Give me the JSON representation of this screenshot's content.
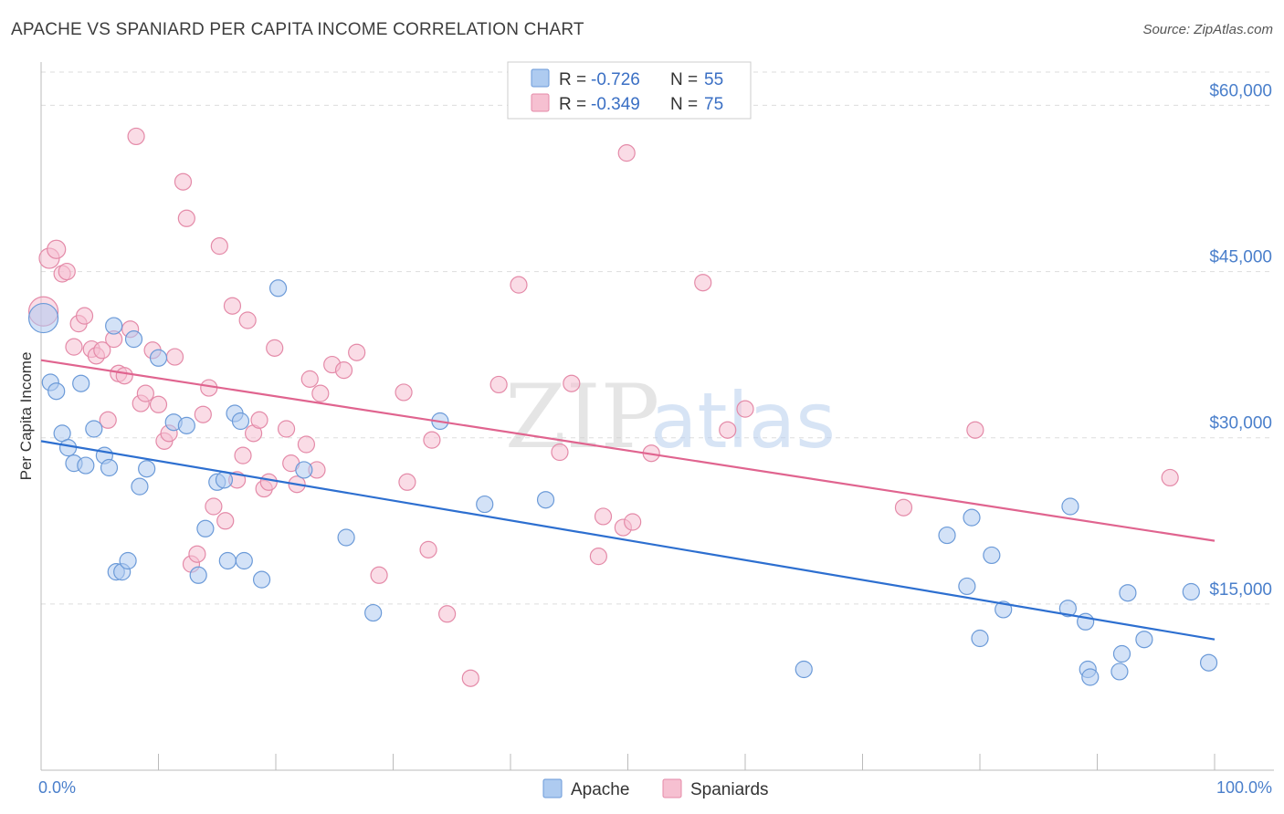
{
  "header": {
    "title": "APACHE VS SPANIARD PER CAPITA INCOME CORRELATION CHART",
    "source": "Source: ZipAtlas.com"
  },
  "watermark": {
    "zip": "ZIP",
    "atlas": "atlas"
  },
  "colors": {
    "apache_fill": "#aecbf0",
    "apache_stroke": "#6b9ad8",
    "apache_line": "#2d6fd0",
    "spaniard_fill": "#f6c0d1",
    "spaniard_stroke": "#e48aa8",
    "spaniard_line": "#e0648f",
    "grid": "#dddddd",
    "axis_text": "#4a7fcb"
  },
  "legend_top": {
    "rows": [
      {
        "r_label": "R =",
        "r_value": "-0.726",
        "n_label": "N =",
        "n_value": "55"
      },
      {
        "r_label": "R =",
        "r_value": "-0.349",
        "n_label": "N =",
        "n_value": "75"
      }
    ]
  },
  "legend_bottom": {
    "apache": "Apache",
    "spaniards": "Spaniards"
  },
  "chart_data": {
    "type": "scatter",
    "title": "APACHE VS SPANIARD PER CAPITA INCOME CORRELATION CHART",
    "xlabel": "",
    "ylabel": "Per Capita Income",
    "xlim": [
      0,
      100
    ],
    "ylim": [
      0,
      63000
    ],
    "x_tick_labels": [
      "0.0%",
      "100.0%"
    ],
    "y_ticks": [
      15000,
      30000,
      45000,
      60000
    ],
    "y_tick_labels": [
      "$15,000",
      "$30,000",
      "$45,000",
      "$60,000"
    ],
    "grid": true,
    "legend_placement": "top-center",
    "series": [
      {
        "name": "Apache",
        "r": -0.726,
        "n": 55,
        "trend": {
          "x": [
            0,
            100
          ],
          "y": [
            29700,
            11800
          ]
        },
        "points": [
          [
            0.2,
            40800,
            16
          ],
          [
            0.8,
            35000,
            9
          ],
          [
            1.3,
            34200,
            9
          ],
          [
            1.8,
            30400,
            9
          ],
          [
            2.3,
            29100,
            9
          ],
          [
            2.8,
            27700,
            9
          ],
          [
            3.4,
            34900,
            9
          ],
          [
            3.8,
            27500,
            9
          ],
          [
            4.5,
            30800,
            9
          ],
          [
            5.4,
            28400,
            9
          ],
          [
            5.8,
            27300,
            9
          ],
          [
            6.4,
            17900,
            9
          ],
          [
            6.9,
            17900,
            9
          ],
          [
            7.4,
            18900,
            9
          ],
          [
            7.9,
            38900,
            9
          ],
          [
            8.4,
            25600,
            9
          ],
          [
            9.0,
            27200,
            9
          ],
          [
            10.0,
            37200,
            9
          ],
          [
            11.3,
            31400,
            9
          ],
          [
            12.4,
            31100,
            9
          ],
          [
            13.4,
            17600,
            9
          ],
          [
            14.0,
            21800,
            9
          ],
          [
            15.0,
            26000,
            9
          ],
          [
            15.6,
            26200,
            9
          ],
          [
            15.9,
            18900,
            9
          ],
          [
            16.5,
            32200,
            9
          ],
          [
            17.0,
            31500,
            9
          ],
          [
            17.3,
            18900,
            9
          ],
          [
            18.8,
            17200,
            9
          ],
          [
            20.2,
            43500,
            9
          ],
          [
            22.4,
            27100,
            9
          ],
          [
            26.0,
            21000,
            9
          ],
          [
            28.3,
            14200,
            9
          ],
          [
            34.0,
            31500,
            9
          ],
          [
            37.8,
            24000,
            9
          ],
          [
            43.0,
            24400,
            9
          ],
          [
            65.0,
            9100,
            9
          ],
          [
            77.2,
            21200,
            9
          ],
          [
            78.9,
            16600,
            9
          ],
          [
            79.3,
            22800,
            9
          ],
          [
            80.0,
            11900,
            9
          ],
          [
            81.0,
            19400,
            9
          ],
          [
            82.0,
            14500,
            9
          ],
          [
            87.5,
            14600,
            9
          ],
          [
            87.7,
            23800,
            9
          ],
          [
            89.0,
            13400,
            9
          ],
          [
            89.2,
            9100,
            9
          ],
          [
            89.4,
            8400,
            9
          ],
          [
            91.9,
            8900,
            9
          ],
          [
            92.1,
            10500,
            9
          ],
          [
            92.6,
            16000,
            9
          ],
          [
            94.0,
            11800,
            9
          ],
          [
            98.0,
            16100,
            9
          ],
          [
            99.5,
            9700,
            9
          ],
          [
            6.2,
            40100,
            9
          ]
        ]
      },
      {
        "name": "Spaniards",
        "r": -0.349,
        "n": 75,
        "trend": {
          "x": [
            0,
            100
          ],
          "y": [
            37000,
            20700
          ]
        },
        "points": [
          [
            0.2,
            41400,
            16
          ],
          [
            0.7,
            46200,
            11
          ],
          [
            1.3,
            47000,
            10
          ],
          [
            1.8,
            44800,
            9
          ],
          [
            2.2,
            45000,
            9
          ],
          [
            2.8,
            38200,
            9
          ],
          [
            3.2,
            40300,
            9
          ],
          [
            3.7,
            41000,
            9
          ],
          [
            4.3,
            38000,
            9
          ],
          [
            4.7,
            37400,
            9
          ],
          [
            5.2,
            37900,
            9
          ],
          [
            5.7,
            31600,
            9
          ],
          [
            6.2,
            38900,
            9
          ],
          [
            6.6,
            35800,
            9
          ],
          [
            7.1,
            35600,
            9
          ],
          [
            7.6,
            39800,
            9
          ],
          [
            8.1,
            57200,
            9
          ],
          [
            8.5,
            33100,
            9
          ],
          [
            8.9,
            34000,
            9
          ],
          [
            9.5,
            37900,
            9
          ],
          [
            10.0,
            33000,
            9
          ],
          [
            10.5,
            29700,
            9
          ],
          [
            10.9,
            30400,
            9
          ],
          [
            11.4,
            37300,
            9
          ],
          [
            12.1,
            53100,
            9
          ],
          [
            12.4,
            49800,
            9
          ],
          [
            12.8,
            18600,
            9
          ],
          [
            13.3,
            19500,
            9
          ],
          [
            13.8,
            32100,
            9
          ],
          [
            14.3,
            34500,
            9
          ],
          [
            14.7,
            23800,
            9
          ],
          [
            15.2,
            47300,
            9
          ],
          [
            15.7,
            22500,
            9
          ],
          [
            16.3,
            41900,
            9
          ],
          [
            16.7,
            26200,
            9
          ],
          [
            17.2,
            28400,
            9
          ],
          [
            17.6,
            40600,
            9
          ],
          [
            18.1,
            30400,
            9
          ],
          [
            18.6,
            31600,
            9
          ],
          [
            19.0,
            25400,
            9
          ],
          [
            19.4,
            26000,
            9
          ],
          [
            19.9,
            38100,
            9
          ],
          [
            20.9,
            30800,
            9
          ],
          [
            21.3,
            27700,
            9
          ],
          [
            21.8,
            25800,
            9
          ],
          [
            22.6,
            29400,
            9
          ],
          [
            22.9,
            35300,
            9
          ],
          [
            23.5,
            27100,
            9
          ],
          [
            23.8,
            34000,
            9
          ],
          [
            24.8,
            36600,
            9
          ],
          [
            25.8,
            36100,
            9
          ],
          [
            26.9,
            37700,
            9
          ],
          [
            28.8,
            17600,
            9
          ],
          [
            30.9,
            34100,
            9
          ],
          [
            31.2,
            26000,
            9
          ],
          [
            33.0,
            19900,
            9
          ],
          [
            33.3,
            29800,
            9
          ],
          [
            34.6,
            14100,
            9
          ],
          [
            36.6,
            8300,
            9
          ],
          [
            39.0,
            34800,
            9
          ],
          [
            40.7,
            43800,
            9
          ],
          [
            44.2,
            28700,
            9
          ],
          [
            45.2,
            34900,
            9
          ],
          [
            47.5,
            19300,
            9
          ],
          [
            47.9,
            22900,
            9
          ],
          [
            49.6,
            21900,
            9
          ],
          [
            49.9,
            55700,
            9
          ],
          [
            50.4,
            22400,
            9
          ],
          [
            52.0,
            28600,
            9
          ],
          [
            56.4,
            44000,
            9
          ],
          [
            58.5,
            30700,
            9
          ],
          [
            60.0,
            32600,
            9
          ],
          [
            73.5,
            23700,
            9
          ],
          [
            79.6,
            30700,
            9
          ],
          [
            96.2,
            26400,
            9
          ]
        ]
      }
    ]
  }
}
